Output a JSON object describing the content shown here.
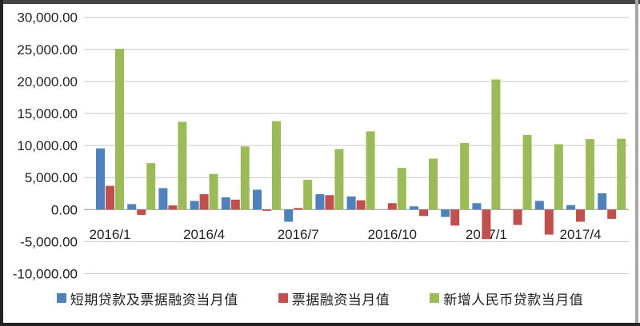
{
  "chart_data": {
    "type": "bar",
    "title": "",
    "categories": [
      "2016/1",
      "2016/2",
      "2016/3",
      "2016/4",
      "2016/5",
      "2016/6",
      "2016/7",
      "2016/8",
      "2016/9",
      "2016/10",
      "2016/11",
      "2016/12",
      "2017/1",
      "2017/2",
      "2017/3",
      "2017/4",
      "2017/5"
    ],
    "x_tick_indices": [
      0,
      3,
      6,
      9,
      12,
      15
    ],
    "x_tick_labels": [
      "2016/1",
      "2016/4",
      "2016/7",
      "2016/10",
      "2017/1",
      "2017/4"
    ],
    "series": [
      {
        "name": "短期贷款及票据融资当月值",
        "color": "#4F81BD",
        "values": [
          9550,
          850,
          3350,
          1350,
          1900,
          3100,
          -1900,
          2400,
          2050,
          0,
          500,
          -1150,
          1000,
          0,
          1350,
          700,
          2550
        ]
      },
      {
        "name": "票据融资当月值",
        "color": "#C0504D",
        "values": [
          3700,
          -830,
          650,
          2400,
          1550,
          -200,
          250,
          2250,
          1450,
          1000,
          -1000,
          -2500,
          -4600,
          -2400,
          -3900,
          -1900,
          -1450
        ]
      },
      {
        "name": "新增人民币贷款当月值",
        "color": "#9BBB59",
        "values": [
          25100,
          7250,
          13700,
          5550,
          9850,
          13800,
          4640,
          9450,
          12200,
          6500,
          7950,
          10400,
          20300,
          11650,
          10200,
          11000,
          11050
        ]
      }
    ],
    "ylim": [
      -10000,
      30000
    ],
    "y_tick_step": 5000,
    "y_ticks": [
      {
        "value": 30000,
        "label": "30,000.00"
      },
      {
        "value": 25000,
        "label": "25,000.00"
      },
      {
        "value": 20000,
        "label": "20,000.00"
      },
      {
        "value": 15000,
        "label": "15,000.00"
      },
      {
        "value": 10000,
        "label": "10,000.00"
      },
      {
        "value": 5000,
        "label": "5,000.00"
      },
      {
        "value": 0,
        "label": "0.00"
      },
      {
        "value": -5000,
        "label": "-5,000.00"
      },
      {
        "value": -10000,
        "label": "-10,000.00"
      }
    ],
    "grid": true,
    "legend_position": "bottom"
  },
  "style": {
    "grid_color": "#c9c9c9",
    "zero_axis_color": "#8f8f8f",
    "text_color": "#1f1f1f",
    "background": "#ffffff"
  }
}
